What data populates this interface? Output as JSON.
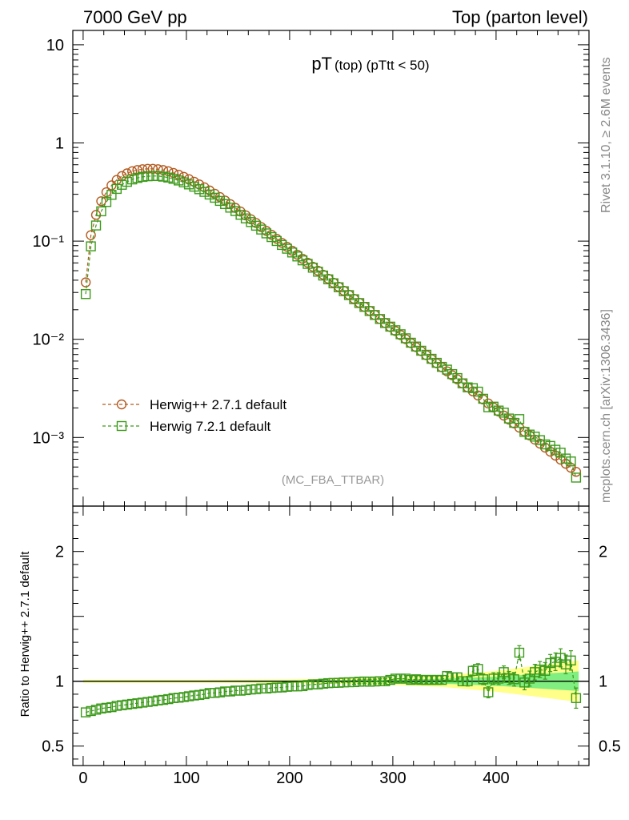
{
  "header": {
    "left": "7000 GeV pp",
    "right": "Top (parton level)"
  },
  "side_labels": {
    "rivet": "Rivet 3.1.10, ≥ 2.6M events",
    "mcplots": "mcplots.cern.ch [arXiv:1306.3436]"
  },
  "colors": {
    "herwig_pp": "#b35a1f",
    "herwig7": "#3c9a1a",
    "band_yellow": "#ffff8a",
    "band_green": "#80ee80"
  },
  "chart_data": [
    {
      "type": "scatter",
      "title_main": "pT",
      "title_sub": "(top) (pTtt < 50)",
      "watermark": "(MC_FBA_TTBAR)",
      "xlabel": "",
      "ylabel": "",
      "ylog": true,
      "xlim": [
        -10,
        490
      ],
      "ylim": [
        0.0002,
        14
      ],
      "x_ticks": [
        0,
        100,
        200,
        300,
        400
      ],
      "y_ticks": [
        {
          "value": 10,
          "label": "10"
        },
        {
          "value": 1,
          "label": "1"
        },
        {
          "value": 0.1,
          "label": "10⁻¹"
        },
        {
          "value": 0.01,
          "label": "10⁻²"
        },
        {
          "value": 0.001,
          "label": "10⁻³"
        }
      ],
      "x": [
        2.5,
        7.5,
        12.5,
        17.5,
        22.5,
        27.5,
        32.5,
        37.5,
        42.5,
        47.5,
        52.5,
        57.5,
        62.5,
        67.5,
        72.5,
        77.5,
        82.5,
        87.5,
        92.5,
        97.5,
        102.5,
        107.5,
        112.5,
        117.5,
        122.5,
        127.5,
        132.5,
        137.5,
        142.5,
        147.5,
        152.5,
        157.5,
        162.5,
        167.5,
        172.5,
        177.5,
        182.5,
        187.5,
        192.5,
        197.5,
        202.5,
        207.5,
        212.5,
        217.5,
        222.5,
        227.5,
        232.5,
        237.5,
        242.5,
        247.5,
        252.5,
        257.5,
        262.5,
        267.5,
        272.5,
        277.5,
        282.5,
        287.5,
        292.5,
        297.5,
        302.5,
        307.5,
        312.5,
        317.5,
        322.5,
        327.5,
        332.5,
        337.5,
        342.5,
        347.5,
        352.5,
        357.5,
        362.5,
        367.5,
        372.5,
        377.5,
        382.5,
        387.5,
        392.5,
        397.5,
        402.5,
        407.5,
        412.5,
        417.5,
        422.5,
        427.5,
        432.5,
        437.5,
        442.5,
        447.5,
        452.5,
        457.5,
        462.5,
        467.5,
        472.5,
        477.5
      ],
      "series": [
        {
          "name": "Herwig++ 2.7.1 default",
          "marker": "circle",
          "values": [
            0.038,
            0.115,
            0.185,
            0.255,
            0.315,
            0.37,
            0.42,
            0.46,
            0.49,
            0.515,
            0.53,
            0.54,
            0.545,
            0.545,
            0.54,
            0.53,
            0.515,
            0.495,
            0.475,
            0.452,
            0.428,
            0.403,
            0.378,
            0.353,
            0.328,
            0.304,
            0.281,
            0.259,
            0.238,
            0.218,
            0.2,
            0.183,
            0.167,
            0.153,
            0.139,
            0.127,
            0.116,
            0.1055,
            0.096,
            0.0875,
            0.0798,
            0.0727,
            0.0662,
            0.0603,
            0.0549,
            0.05,
            0.0455,
            0.0414,
            0.0377,
            0.0343,
            0.0312,
            0.0284,
            0.0258,
            0.0235,
            0.0214,
            0.0195,
            0.0177,
            0.0161,
            0.01465,
            0.01333,
            0.01213,
            0.01104,
            0.01004,
            0.00914,
            0.00832,
            0.00757,
            0.00689,
            0.00627,
            0.0057,
            0.00519,
            0.00472,
            0.0043,
            0.00391,
            0.00356,
            0.00324,
            0.00295,
            0.00268,
            0.00244,
            0.00222,
            0.00202,
            0.00184,
            0.00167,
            0.00152,
            0.00139,
            0.00126,
            0.00115,
            0.00105,
            0.000952,
            0.000866,
            0.000788,
            0.000717,
            0.000653,
            0.000594,
            0.00054,
            0.000492,
            0.000447
          ]
        },
        {
          "name": "Herwig 7.2.1 default",
          "marker": "square",
          "values": [
            0.0289,
            0.0885,
            0.1443,
            0.2012,
            0.2505,
            0.2961,
            0.3402,
            0.3749,
            0.4018,
            0.4249,
            0.4399,
            0.4509,
            0.4578,
            0.4605,
            0.4601,
            0.4537,
            0.4439,
            0.4307,
            0.4147,
            0.3969,
            0.3782,
            0.3585,
            0.3379,
            0.3177,
            0.2981,
            0.2766,
            0.2568,
            0.2386,
            0.2192,
            0.2024,
            0.1854,
            0.1704,
            0.1564,
            0.1436,
            0.1312,
            0.1199,
            0.11,
            0.1003,
            0.0914,
            0.0837,
            0.0766,
            0.0698,
            0.0637,
            0.0586,
            0.0536,
            0.0488,
            0.0446,
            0.0408,
            0.0372,
            0.0339,
            0.0309,
            0.0282,
            0.0256,
            0.0234,
            0.0214,
            0.0194,
            0.0177,
            0.0161,
            0.01465,
            0.01346,
            0.01237,
            0.01126,
            0.01024,
            0.00923,
            0.00844,
            0.00765,
            0.00696,
            0.00633,
            0.00576,
            0.00524,
            0.00491,
            0.00442,
            0.00403,
            0.00356,
            0.00324,
            0.00318,
            0.00293,
            0.00248,
            0.00203,
            0.00206,
            0.00188,
            0.00179,
            0.00156,
            0.00141,
            0.00154,
            0.00114,
            0.00107,
            0.00102,
            0.00094,
            0.00085,
            0.00082,
            0.00075,
            0.0007,
            0.00061,
            0.00057,
            0.00039
          ]
        }
      ],
      "legend_position": "lower-left"
    },
    {
      "type": "scatter",
      "ylabel": "Ratio to Herwig++ 2.7.1 default",
      "xlim": [
        -10,
        490
      ],
      "ylim": [
        0.35,
        2.35
      ],
      "x_ticks": [
        {
          "value": 0,
          "label": "0"
        },
        {
          "value": 100,
          "label": "100"
        },
        {
          "value": 200,
          "label": "200"
        },
        {
          "value": 300,
          "label": "300"
        },
        {
          "value": 400,
          "label": "400"
        }
      ],
      "y_ticks": [
        {
          "value": 0.5,
          "label": "0.5"
        },
        {
          "value": 1,
          "label": "1"
        },
        {
          "value": 2,
          "label": "2"
        }
      ],
      "reference_line": 1,
      "band_x": [
        0,
        100,
        200,
        300,
        350,
        400,
        440,
        480
      ],
      "band_yellow_half_width": [
        0.012,
        0.012,
        0.014,
        0.028,
        0.045,
        0.08,
        0.12,
        0.16
      ],
      "band_green_half_width": [
        0.005,
        0.005,
        0.006,
        0.012,
        0.02,
        0.035,
        0.055,
        0.075
      ],
      "ratio_values": [
        0.76,
        0.77,
        0.78,
        0.79,
        0.795,
        0.8,
        0.81,
        0.815,
        0.82,
        0.825,
        0.83,
        0.835,
        0.84,
        0.845,
        0.852,
        0.856,
        0.862,
        0.87,
        0.873,
        0.878,
        0.884,
        0.89,
        0.894,
        0.9,
        0.909,
        0.91,
        0.914,
        0.921,
        0.921,
        0.928,
        0.927,
        0.931,
        0.936,
        0.939,
        0.944,
        0.944,
        0.948,
        0.951,
        0.952,
        0.957,
        0.96,
        0.96,
        0.962,
        0.971,
        0.976,
        0.976,
        0.981,
        0.985,
        0.987,
        0.988,
        0.991,
        0.992,
        0.993,
        0.996,
        0.998,
        0.996,
        0.998,
        1.0,
        1.0,
        1.01,
        1.02,
        1.02,
        1.02,
        1.01,
        1.015,
        1.01,
        1.01,
        1.01,
        1.01,
        1.01,
        1.04,
        1.03,
        1.03,
        1.0,
        1.0,
        1.08,
        1.095,
        1.015,
        0.915,
        1.02,
        1.02,
        1.07,
        1.025,
        1.015,
        1.22,
        0.99,
        1.02,
        1.07,
        1.09,
        1.08,
        1.14,
        1.15,
        1.18,
        1.13,
        1.16,
        0.87
      ],
      "ratio_errors": [
        0.005,
        0.005,
        0.005,
        0.005,
        0.005,
        0.005,
        0.005,
        0.005,
        0.005,
        0.005,
        0.005,
        0.005,
        0.005,
        0.005,
        0.005,
        0.005,
        0.005,
        0.005,
        0.005,
        0.005,
        0.006,
        0.006,
        0.006,
        0.006,
        0.006,
        0.006,
        0.007,
        0.007,
        0.007,
        0.007,
        0.008,
        0.008,
        0.008,
        0.008,
        0.009,
        0.009,
        0.009,
        0.01,
        0.01,
        0.01,
        0.011,
        0.011,
        0.011,
        0.012,
        0.012,
        0.012,
        0.013,
        0.013,
        0.014,
        0.014,
        0.015,
        0.015,
        0.016,
        0.016,
        0.017,
        0.018,
        0.018,
        0.019,
        0.02,
        0.02,
        0.021,
        0.022,
        0.023,
        0.024,
        0.025,
        0.026,
        0.027,
        0.028,
        0.029,
        0.03,
        0.031,
        0.033,
        0.034,
        0.035,
        0.037,
        0.038,
        0.04,
        0.041,
        0.043,
        0.045,
        0.046,
        0.048,
        0.05,
        0.052,
        0.054,
        0.056,
        0.058,
        0.06,
        0.062,
        0.064,
        0.066,
        0.068,
        0.07,
        0.072,
        0.075,
        0.078
      ]
    }
  ]
}
